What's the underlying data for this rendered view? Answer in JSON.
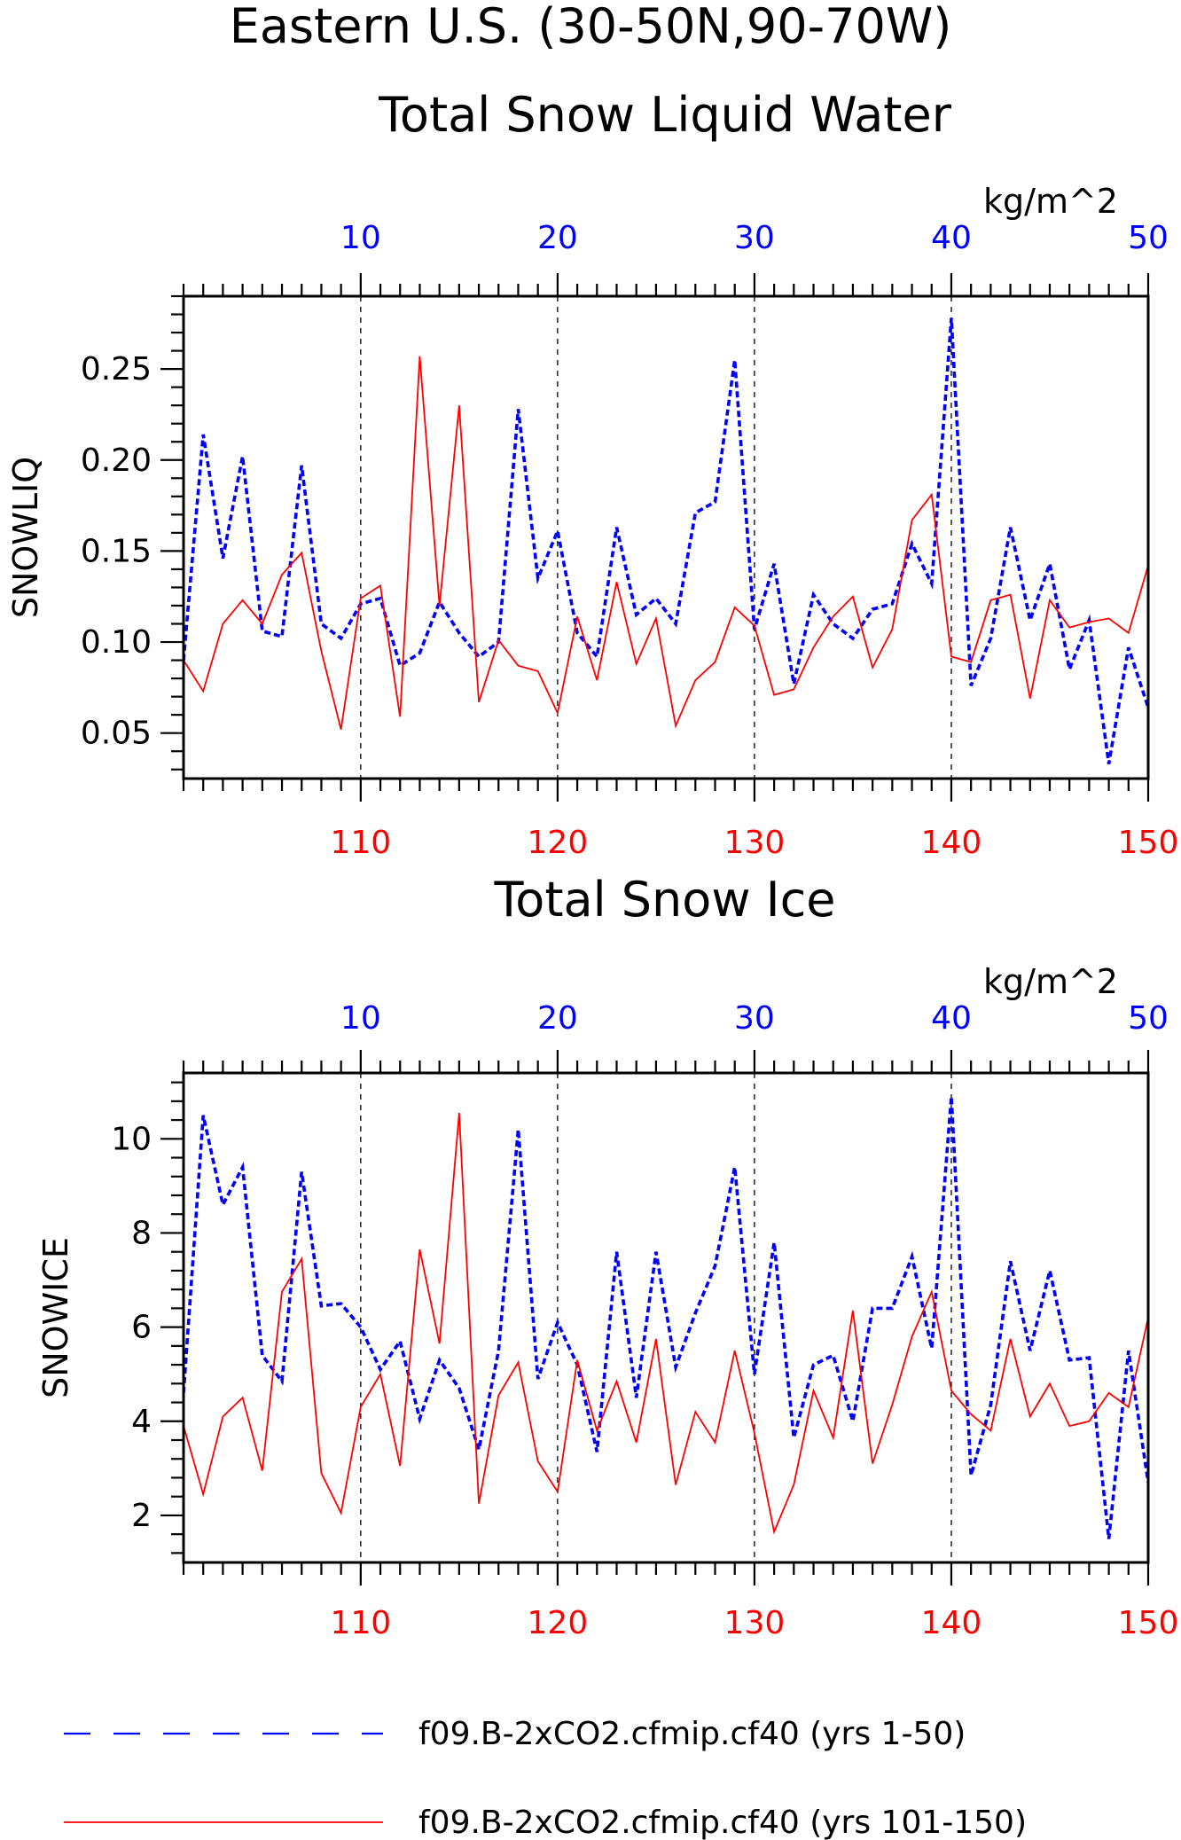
{
  "title_line1": "Eastern U.S. (30-50N,90-70W)",
  "colors": {
    "blue": "#0000ff",
    "red": "#ff0000",
    "axis": "#000000"
  },
  "legend": [
    {
      "label": "f09.B-2xCO2.cfmip.cf40 (yrs 1-50)",
      "color": "#0000ff",
      "style": "dashed"
    },
    {
      "label": "f09.B-2xCO2.cfmip.cf40 (yrs 101-150)",
      "color": "#ff0000",
      "style": "solid"
    }
  ],
  "chart_data": [
    {
      "type": "line",
      "title": "Total Snow Liquid Water",
      "ylabel": "SNOWLIQ",
      "units": "kg/m^2",
      "ylim": [
        0.025,
        0.29
      ],
      "yticks": [
        0.05,
        0.1,
        0.15,
        0.2,
        0.25
      ],
      "ytick_labels": [
        "0.05",
        "0.10",
        "0.15",
        "0.20",
        "0.25"
      ],
      "x_top": {
        "range": [
          1,
          50
        ],
        "ticks": [
          10,
          20,
          30,
          40,
          50
        ],
        "color": "#0000ff"
      },
      "x_bottom": {
        "range": [
          101,
          150
        ],
        "ticks": [
          110,
          120,
          130,
          140,
          150
        ],
        "color": "#ff0000"
      },
      "grid_x": [
        10,
        20,
        30,
        40
      ],
      "series": [
        {
          "color": "#0000ff",
          "style": "dashed",
          "axis": "top",
          "x": [
            1,
            2,
            3,
            4,
            5,
            6,
            7,
            8,
            9,
            10,
            11,
            12,
            13,
            14,
            15,
            16,
            17,
            18,
            19,
            20,
            21,
            22,
            23,
            24,
            25,
            26,
            27,
            28,
            29,
            30,
            31,
            32,
            33,
            34,
            35,
            36,
            37,
            38,
            39,
            40,
            41,
            42,
            43,
            44,
            45,
            46,
            47,
            48,
            49,
            50
          ],
          "values": [
            0.09,
            0.214,
            0.146,
            0.202,
            0.106,
            0.103,
            0.197,
            0.11,
            0.102,
            0.121,
            0.124,
            0.087,
            0.094,
            0.122,
            0.105,
            0.092,
            0.1,
            0.228,
            0.135,
            0.161,
            0.105,
            0.092,
            0.163,
            0.115,
            0.124,
            0.11,
            0.171,
            0.177,
            0.255,
            0.107,
            0.143,
            0.077,
            0.126,
            0.11,
            0.102,
            0.118,
            0.121,
            0.154,
            0.132,
            0.278,
            0.076,
            0.102,
            0.163,
            0.112,
            0.143,
            0.085,
            0.112,
            0.033,
            0.097,
            0.064
          ]
        },
        {
          "color": "#ff0000",
          "style": "solid",
          "axis": "bottom",
          "x": [
            101,
            102,
            103,
            104,
            105,
            106,
            107,
            108,
            109,
            110,
            111,
            112,
            113,
            114,
            115,
            116,
            117,
            118,
            119,
            120,
            121,
            122,
            123,
            124,
            125,
            126,
            127,
            128,
            129,
            130,
            131,
            132,
            133,
            134,
            135,
            136,
            137,
            138,
            139,
            140,
            141,
            142,
            143,
            144,
            145,
            146,
            147,
            148,
            149,
            150
          ],
          "values": [
            0.09,
            0.073,
            0.11,
            0.123,
            0.11,
            0.137,
            0.149,
            0.095,
            0.052,
            0.124,
            0.131,
            0.059,
            0.257,
            0.12,
            0.23,
            0.067,
            0.101,
            0.087,
            0.084,
            0.061,
            0.114,
            0.079,
            0.133,
            0.088,
            0.113,
            0.054,
            0.079,
            0.089,
            0.119,
            0.109,
            0.071,
            0.074,
            0.097,
            0.114,
            0.125,
            0.086,
            0.107,
            0.167,
            0.181,
            0.092,
            0.089,
            0.123,
            0.126,
            0.069,
            0.123,
            0.108,
            0.111,
            0.113,
            0.105,
            0.142
          ]
        }
      ]
    },
    {
      "type": "line",
      "title": "Total Snow Ice",
      "ylabel": "SNOWICE",
      "units": "kg/m^2",
      "ylim": [
        1.0,
        11.4
      ],
      "yticks": [
        2,
        4,
        6,
        8,
        10
      ],
      "ytick_labels": [
        "2",
        "4",
        "6",
        "8",
        "10"
      ],
      "x_top": {
        "range": [
          1,
          50
        ],
        "ticks": [
          10,
          20,
          30,
          40,
          50
        ],
        "color": "#0000ff"
      },
      "x_bottom": {
        "range": [
          101,
          150
        ],
        "ticks": [
          110,
          120,
          130,
          140,
          150
        ],
        "color": "#ff0000"
      },
      "grid_x": [
        10,
        20,
        30,
        40
      ],
      "series": [
        {
          "color": "#0000ff",
          "style": "dashed",
          "axis": "top",
          "x": [
            1,
            2,
            3,
            4,
            5,
            6,
            7,
            8,
            9,
            10,
            11,
            12,
            13,
            14,
            15,
            16,
            17,
            18,
            19,
            20,
            21,
            22,
            23,
            24,
            25,
            26,
            27,
            28,
            29,
            30,
            31,
            32,
            33,
            34,
            35,
            36,
            37,
            38,
            39,
            40,
            41,
            42,
            43,
            44,
            45,
            46,
            47,
            48,
            49,
            50
          ],
          "values": [
            4.6,
            10.5,
            8.6,
            9.4,
            5.4,
            4.85,
            9.3,
            6.45,
            6.5,
            6.0,
            5.1,
            5.7,
            4.05,
            5.3,
            4.7,
            3.4,
            5.5,
            10.2,
            4.9,
            6.1,
            5.2,
            3.35,
            7.6,
            4.5,
            7.6,
            5.15,
            6.3,
            7.3,
            9.4,
            5.0,
            7.8,
            3.65,
            5.2,
            5.4,
            4.0,
            6.4,
            6.4,
            7.5,
            5.55,
            10.9,
            2.85,
            4.35,
            7.4,
            5.5,
            7.2,
            5.3,
            5.35,
            1.5,
            5.5,
            2.7
          ]
        },
        {
          "color": "#ff0000",
          "style": "solid",
          "axis": "bottom",
          "x": [
            101,
            102,
            103,
            104,
            105,
            106,
            107,
            108,
            109,
            110,
            111,
            112,
            113,
            114,
            115,
            116,
            117,
            118,
            119,
            120,
            121,
            122,
            123,
            124,
            125,
            126,
            127,
            128,
            129,
            130,
            131,
            132,
            133,
            134,
            135,
            136,
            137,
            138,
            139,
            140,
            141,
            142,
            143,
            144,
            145,
            146,
            147,
            148,
            149,
            150
          ],
          "values": [
            3.9,
            2.45,
            4.1,
            4.5,
            2.95,
            6.75,
            7.45,
            2.9,
            2.05,
            4.3,
            5.0,
            3.05,
            7.65,
            5.65,
            10.55,
            2.25,
            4.55,
            5.25,
            3.15,
            2.5,
            5.3,
            3.8,
            4.85,
            3.55,
            5.75,
            2.65,
            4.2,
            3.55,
            5.5,
            3.75,
            1.65,
            2.65,
            4.65,
            3.65,
            6.35,
            3.1,
            4.35,
            5.8,
            6.75,
            4.65,
            4.15,
            3.8,
            5.75,
            4.1,
            4.8,
            3.9,
            4.0,
            4.6,
            4.3,
            6.2
          ]
        }
      ]
    }
  ]
}
